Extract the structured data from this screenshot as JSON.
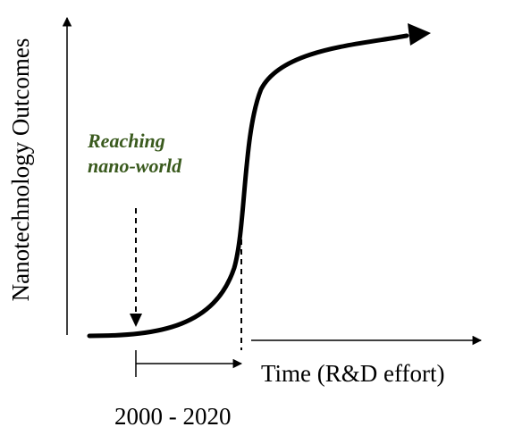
{
  "diagram": {
    "y_axis_label": "Nanotechnology Outcomes",
    "x_axis_label": "Time (R&D effort)",
    "annotation": {
      "line1": "Reaching",
      "line2": "nano-world"
    },
    "period_label": "2000 - 2020",
    "colors": {
      "curve": "#000000",
      "annotation_text": "#3a5a1e",
      "text": "#000000"
    }
  }
}
